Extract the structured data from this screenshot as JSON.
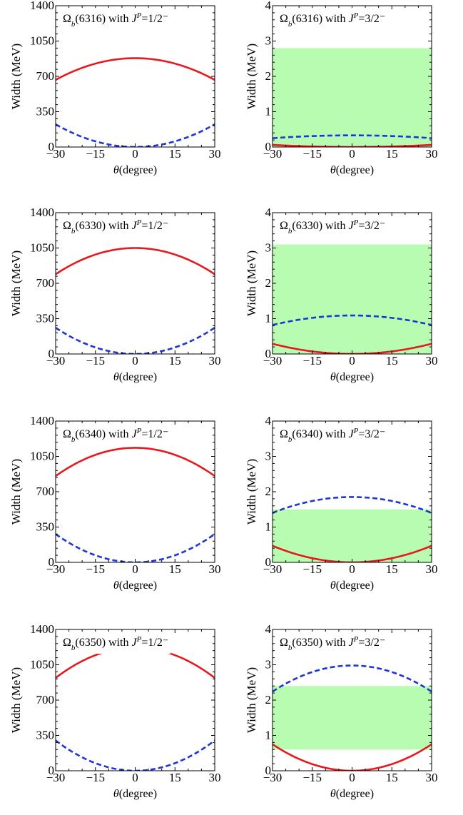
{
  "chart_data": [
    {
      "type": "line",
      "title_name": "Ω",
      "title_sub": "b",
      "title_mid": "(6316) with ",
      "title_j": "J",
      "title_sup": "P",
      "title_value": "=1/2⁻",
      "xlabel_symbol": "θ",
      "xlabel_unit": "(degree)",
      "ylabel": "Width (MeV)",
      "xlim": [
        -30,
        30
      ],
      "ylim": [
        0,
        1400
      ],
      "xticks": [
        -30,
        -15,
        0,
        15,
        30
      ],
      "yticks": [
        0,
        350,
        700,
        1050,
        1400
      ],
      "xtick_labels": [
        "−30",
        "−15",
        "0",
        "15",
        "30"
      ],
      "ytick_labels": [
        "0",
        "350",
        "700",
        "1050",
        "1400"
      ],
      "band": null,
      "series": [
        {
          "style": "solid",
          "color": "#e8191e",
          "x": [
            -30,
            -15,
            0,
            15,
            30
          ],
          "y": [
            665,
            826,
            880,
            826,
            665
          ]
        },
        {
          "style": "dashed",
          "color": "#1f35d6",
          "x": [
            -30,
            -15,
            0,
            15,
            30
          ],
          "y": [
            225,
            56,
            0,
            56,
            225
          ]
        }
      ]
    },
    {
      "type": "line",
      "title_name": "Ω",
      "title_sub": "b",
      "title_mid": "(6316) with ",
      "title_j": "J",
      "title_sup": "P",
      "title_value": "=3/2⁻",
      "xlabel_symbol": "θ",
      "xlabel_unit": "(degree)",
      "ylabel": "Width (MeV)",
      "xlim": [
        -30,
        30
      ],
      "ylim": [
        0,
        4
      ],
      "xticks": [
        -30,
        -15,
        0,
        15,
        30
      ],
      "yticks": [
        0,
        1,
        2,
        3,
        4
      ],
      "xtick_labels": [
        "−30",
        "−15",
        "0",
        "15",
        "30"
      ],
      "ytick_labels": [
        "0",
        "1",
        "2",
        "3",
        "4"
      ],
      "band": [
        0,
        2.8
      ],
      "series": [
        {
          "style": "solid",
          "color": "#e8191e",
          "x": [
            -30,
            -15,
            0,
            15,
            30
          ],
          "y": [
            0.06,
            0.02,
            0,
            0.02,
            0.06
          ]
        },
        {
          "style": "dashed",
          "color": "#1f35d6",
          "x": [
            -30,
            -15,
            0,
            15,
            30
          ],
          "y": [
            0.25,
            0.31,
            0.33,
            0.31,
            0.25
          ]
        }
      ]
    },
    {
      "type": "line",
      "title_name": "Ω",
      "title_sub": "b",
      "title_mid": "(6330) with ",
      "title_j": "J",
      "title_sup": "P",
      "title_value": "=1/2⁻",
      "xlabel_symbol": "θ",
      "xlabel_unit": "(degree)",
      "ylabel": "Width (MeV)",
      "xlim": [
        -30,
        30
      ],
      "ylim": [
        0,
        1400
      ],
      "xticks": [
        -30,
        -15,
        0,
        15,
        30
      ],
      "yticks": [
        0,
        350,
        700,
        1050,
        1400
      ],
      "xtick_labels": [
        "−30",
        "−15",
        "0",
        "15",
        "30"
      ],
      "ytick_labels": [
        "0",
        "350",
        "700",
        "1050",
        "1400"
      ],
      "band": null,
      "series": [
        {
          "style": "solid",
          "color": "#e8191e",
          "x": [
            -30,
            -15,
            0,
            15,
            30
          ],
          "y": [
            790,
            985,
            1050,
            985,
            790
          ]
        },
        {
          "style": "dashed",
          "color": "#1f35d6",
          "x": [
            -30,
            -15,
            0,
            15,
            30
          ],
          "y": [
            260,
            65,
            0,
            65,
            260
          ]
        }
      ]
    },
    {
      "type": "line",
      "title_name": "Ω",
      "title_sub": "b",
      "title_mid": "(6330) with ",
      "title_j": "J",
      "title_sup": "P",
      "title_value": "=3/2⁻",
      "xlabel_symbol": "θ",
      "xlabel_unit": "(degree)",
      "ylabel": "Width (MeV)",
      "xlim": [
        -30,
        30
      ],
      "ylim": [
        0,
        4
      ],
      "xticks": [
        -30,
        -15,
        0,
        15,
        30
      ],
      "yticks": [
        0,
        1,
        2,
        3,
        4
      ],
      "xtick_labels": [
        "−30",
        "−15",
        "0",
        "15",
        "30"
      ],
      "ytick_labels": [
        "0",
        "1",
        "2",
        "3",
        "4"
      ],
      "band": [
        0,
        3.1
      ],
      "series": [
        {
          "style": "solid",
          "color": "#e8191e",
          "x": [
            -30,
            -15,
            0,
            15,
            30
          ],
          "y": [
            0.29,
            0.07,
            0,
            0.07,
            0.29
          ]
        },
        {
          "style": "dashed",
          "color": "#1f35d6",
          "x": [
            -30,
            -15,
            0,
            15,
            30
          ],
          "y": [
            0.82,
            1.02,
            1.09,
            1.02,
            0.82
          ]
        }
      ]
    },
    {
      "type": "line",
      "title_name": "Ω",
      "title_sub": "b",
      "title_mid": "(6340) with ",
      "title_j": "J",
      "title_sup": "P",
      "title_value": "=1/2⁻",
      "xlabel_symbol": "θ",
      "xlabel_unit": "(degree)",
      "ylabel": "Width (MeV)",
      "xlim": [
        -30,
        30
      ],
      "ylim": [
        0,
        1400
      ],
      "xticks": [
        -30,
        -15,
        0,
        15,
        30
      ],
      "yticks": [
        0,
        350,
        700,
        1050,
        1400
      ],
      "xtick_labels": [
        "−30",
        "−15",
        "0",
        "15",
        "30"
      ],
      "ytick_labels": [
        "0",
        "350",
        "700",
        "1050",
        "1400"
      ],
      "band": null,
      "series": [
        {
          "style": "solid",
          "color": "#e8191e",
          "x": [
            -30,
            -15,
            0,
            15,
            30
          ],
          "y": [
            855,
            1064,
            1135,
            1064,
            855
          ]
        },
        {
          "style": "dashed",
          "color": "#1f35d6",
          "x": [
            -30,
            -15,
            0,
            15,
            30
          ],
          "y": [
            280,
            70,
            0,
            70,
            280
          ]
        }
      ]
    },
    {
      "type": "line",
      "title_name": "Ω",
      "title_sub": "b",
      "title_mid": "(6340) with ",
      "title_j": "J",
      "title_sup": "P",
      "title_value": "=3/2⁻",
      "xlabel_symbol": "θ",
      "xlabel_unit": "(degree)",
      "ylabel": "Width (MeV)",
      "xlim": [
        -30,
        30
      ],
      "ylim": [
        0,
        4
      ],
      "xticks": [
        -30,
        -15,
        0,
        15,
        30
      ],
      "yticks": [
        0,
        1,
        2,
        3,
        4
      ],
      "xtick_labels": [
        "−30",
        "−15",
        "0",
        "15",
        "30"
      ],
      "ytick_labels": [
        "0",
        "1",
        "2",
        "3",
        "4"
      ],
      "band": [
        0,
        1.5
      ],
      "series": [
        {
          "style": "solid",
          "color": "#e8191e",
          "x": [
            -30,
            -15,
            0,
            15,
            30
          ],
          "y": [
            0.47,
            0.12,
            0,
            0.12,
            0.47
          ]
        },
        {
          "style": "dashed",
          "color": "#1f35d6",
          "x": [
            -30,
            -15,
            0,
            15,
            30
          ],
          "y": [
            1.4,
            1.74,
            1.85,
            1.74,
            1.4
          ]
        }
      ]
    },
    {
      "type": "line",
      "title_name": "Ω",
      "title_sub": "b",
      "title_mid": "(6350) with ",
      "title_j": "J",
      "title_sup": "P",
      "title_value": "=1/2⁻",
      "xlabel_symbol": "θ",
      "xlabel_unit": "(degree)",
      "ylabel": "Width (MeV)",
      "xlim": [
        -30,
        30
      ],
      "ylim": [
        0,
        1400
      ],
      "xticks": [
        -30,
        -15,
        0,
        15,
        30
      ],
      "yticks": [
        0,
        350,
        700,
        1050,
        1400
      ],
      "xtick_labels": [
        "−30",
        "−15",
        "0",
        "15",
        "30"
      ],
      "ytick_labels": [
        "0",
        "350",
        "700",
        "1050",
        "1400"
      ],
      "band": null,
      "series": [
        {
          "style": "solid",
          "color": "#e8191e",
          "x": [
            -30,
            -15,
            0,
            15,
            30
          ],
          "y": [
            920,
            1145,
            1220,
            1145,
            920
          ]
        },
        {
          "style": "dashed",
          "color": "#1f35d6",
          "x": [
            -30,
            -15,
            0,
            15,
            30
          ],
          "y": [
            300,
            75,
            0,
            75,
            300
          ]
        }
      ]
    },
    {
      "type": "line",
      "title_name": "Ω",
      "title_sub": "b",
      "title_mid": "(6350) with ",
      "title_j": "J",
      "title_sup": "P",
      "title_value": "=3/2⁻",
      "xlabel_symbol": "θ",
      "xlabel_unit": "(degree)",
      "ylabel": "Width (MeV)",
      "xlim": [
        -30,
        30
      ],
      "ylim": [
        0,
        4
      ],
      "xticks": [
        -30,
        -15,
        0,
        15,
        30
      ],
      "yticks": [
        0,
        1,
        2,
        3,
        4
      ],
      "xtick_labels": [
        "−30",
        "−15",
        "0",
        "15",
        "30"
      ],
      "ytick_labels": [
        "0",
        "1",
        "2",
        "3",
        "4"
      ],
      "band": [
        0.6,
        2.4
      ],
      "series": [
        {
          "style": "solid",
          "color": "#e8191e",
          "x": [
            -30,
            -15,
            0,
            15,
            30
          ],
          "y": [
            0.75,
            0.19,
            0,
            0.19,
            0.75
          ]
        },
        {
          "style": "dashed",
          "color": "#1f35d6",
          "x": [
            -30,
            -15,
            0,
            15,
            30
          ],
          "y": [
            2.24,
            2.79,
            2.98,
            2.79,
            2.24
          ]
        }
      ]
    }
  ],
  "colors": {
    "band": "#b7fcb0",
    "axis": "#000000"
  }
}
